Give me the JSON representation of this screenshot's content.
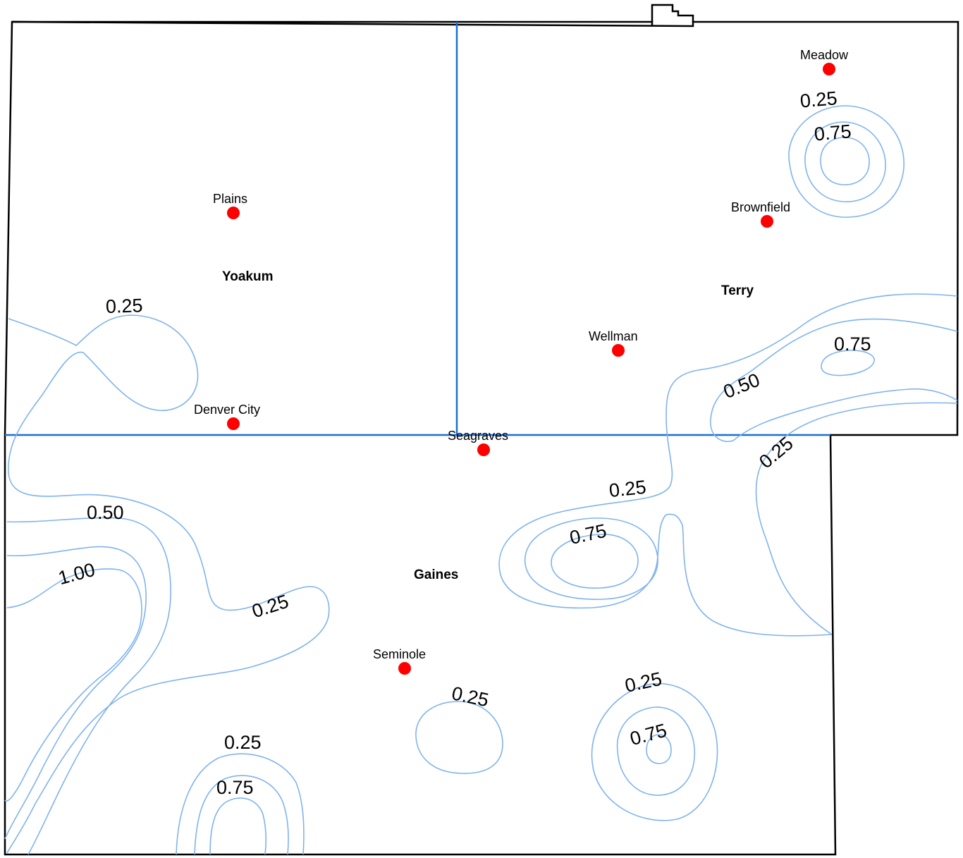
{
  "colors": {
    "contour": "#7fb3ee",
    "county_line": "#1a6fd6",
    "town_marker": "#ff0000",
    "border": "#000000"
  },
  "counties": [
    {
      "id": "yoakum",
      "label": "Yoakum"
    },
    {
      "id": "terry",
      "label": "Terry"
    },
    {
      "id": "gaines",
      "label": "Gaines"
    }
  ],
  "towns": [
    {
      "id": "meadow",
      "label": "Meadow"
    },
    {
      "id": "plains",
      "label": "Plains"
    },
    {
      "id": "brownfield",
      "label": "Brownfield"
    },
    {
      "id": "wellman",
      "label": "Wellman"
    },
    {
      "id": "denver-city",
      "label": "Denver City"
    },
    {
      "id": "seagraves",
      "label": "Seagraves"
    },
    {
      "id": "seminole",
      "label": "Seminole"
    }
  ],
  "contour_labels": [
    {
      "id": "c1",
      "text": "0.25"
    },
    {
      "id": "c2",
      "text": "0.75"
    },
    {
      "id": "c3",
      "text": "0.25"
    },
    {
      "id": "c4",
      "text": "0.75"
    },
    {
      "id": "c5",
      "text": "0.50"
    },
    {
      "id": "c6",
      "text": "0.25"
    },
    {
      "id": "c7",
      "text": "0.25"
    },
    {
      "id": "c8",
      "text": "0.75"
    },
    {
      "id": "c9",
      "text": "0.50"
    },
    {
      "id": "c10",
      "text": "1.00"
    },
    {
      "id": "c11",
      "text": "0.25"
    },
    {
      "id": "c12",
      "text": "0.25"
    },
    {
      "id": "c13",
      "text": "0.25"
    },
    {
      "id": "c14",
      "text": "0.75"
    },
    {
      "id": "c15",
      "text": "0.25"
    },
    {
      "id": "c16",
      "text": "0.75"
    }
  ]
}
